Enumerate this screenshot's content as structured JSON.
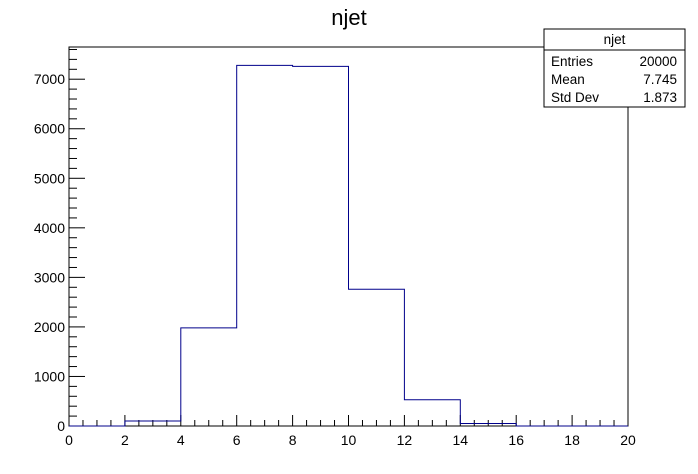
{
  "chart_data": {
    "type": "bar",
    "title": "njet",
    "xlabel": "",
    "ylabel": "",
    "bin_edges": [
      0,
      2,
      4,
      6,
      8,
      10,
      12,
      14,
      16,
      18,
      20
    ],
    "values": [
      0,
      100,
      1980,
      7280,
      7260,
      2760,
      530,
      50,
      0,
      0
    ],
    "xlim": [
      0,
      20
    ],
    "ylim": [
      0,
      7650
    ],
    "x_ticks": [
      0,
      2,
      4,
      6,
      8,
      10,
      12,
      14,
      16,
      18,
      20
    ],
    "y_ticks": [
      0,
      1000,
      2000,
      3000,
      4000,
      5000,
      6000,
      7000
    ],
    "line_color": "#00008b",
    "grid": false
  },
  "stats_box": {
    "name": "njet",
    "rows": [
      {
        "label": "Entries",
        "value": "20000"
      },
      {
        "label": "Mean",
        "value": "7.745"
      },
      {
        "label": "Std Dev",
        "value": "1.873"
      }
    ]
  }
}
